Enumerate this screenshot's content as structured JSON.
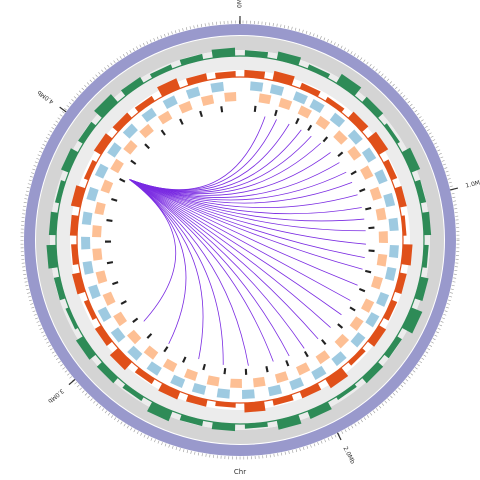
{
  "chart_data": {
    "type": "circos",
    "title": "Chr",
    "xlim": [
      0,
      4.7
    ],
    "xticks": [
      {
        "value": 0,
        "label": "0Mb"
      },
      {
        "value": 1,
        "label": "1.0Mb"
      },
      {
        "value": 2,
        "label": "2.0Mb"
      },
      {
        "value": 3,
        "label": "3.0Mb"
      },
      {
        "value": 4,
        "label": "4.0Mb"
      }
    ],
    "ring_color": "#9999cc",
    "tracks": [
      {
        "name_hidden": false,
        "kind": "histogram",
        "color": "#2e8b57",
        "ylim": [
          0,
          1
        ],
        "values": [
          0.5,
          0.7,
          0.4,
          0.9,
          0.6,
          0.3,
          0.8,
          0.5,
          0.6,
          0.4,
          0.7,
          1.0,
          0.5,
          0.6,
          0.3,
          0.7,
          0.8,
          0.4,
          0.6,
          0.5,
          0.9,
          0.4,
          0.6,
          0.7,
          0.3,
          0.5,
          0.8,
          0.6,
          0.4,
          0.7,
          0.5,
          0.9,
          0.6,
          0.4,
          0.5,
          0.7
        ]
      },
      {
        "name_hidden": false,
        "kind": "histogram",
        "color": "#e0501a",
        "ylim": [
          0,
          1
        ],
        "values": [
          0.6,
          0.8,
          0.5,
          0.4,
          0.7,
          0.9,
          0.5,
          0.6,
          0.3,
          0.8,
          0.6,
          0.5,
          0.7,
          0.4,
          0.9,
          0.6,
          0.5,
          0.8,
          0.4,
          0.6,
          0.7,
          0.5,
          0.9,
          0.6,
          0.4,
          0.7,
          0.5,
          0.6,
          0.8,
          0.4,
          0.7,
          0.6,
          0.5,
          0.9,
          0.6,
          0.5
        ]
      }
    ],
    "forward_genes": {
      "color": "#9ecae1",
      "starts": [
        0.05,
        0.15,
        0.27,
        0.36,
        0.48,
        0.6,
        0.71,
        0.83,
        0.95,
        1.07,
        1.2,
        1.31,
        1.44,
        1.55,
        1.67,
        1.8,
        1.92,
        2.04,
        2.15,
        2.28,
        2.4,
        2.52,
        2.63,
        2.76,
        2.88,
        3.0,
        3.12,
        3.24,
        3.36,
        3.48,
        3.6,
        3.72,
        3.84,
        3.96,
        4.08,
        4.2,
        4.32,
        4.44,
        4.56
      ]
    },
    "reverse_genes": {
      "color": "#fdbf94",
      "starts": [
        0.1,
        0.21,
        0.32,
        0.43,
        0.55,
        0.66,
        0.78,
        0.9,
        1.01,
        1.13,
        1.25,
        1.37,
        1.5,
        1.61,
        1.73,
        1.86,
        1.98,
        2.1,
        2.22,
        2.34,
        2.46,
        2.58,
        2.7,
        2.82,
        2.94,
        3.06,
        3.18,
        3.3,
        3.42,
        3.54,
        3.66,
        3.78,
        3.9,
        4.02,
        4.14,
        4.26,
        4.38,
        4.5,
        4.62
      ]
    },
    "features": {
      "color": "#222222",
      "positions": [
        0.08,
        0.2,
        0.33,
        0.41,
        0.52,
        0.64,
        0.77,
        0.88,
        0.99,
        1.1,
        1.23,
        1.35,
        1.46,
        1.58,
        1.7,
        1.83,
        1.95,
        2.07,
        2.19,
        2.31,
        2.43,
        2.55,
        2.67,
        2.79,
        2.91,
        3.03,
        3.15,
        3.27,
        3.39,
        3.51,
        3.63,
        3.75,
        3.87,
        3.99,
        4.11,
        4.23,
        4.35,
        4.47,
        4.59
      ]
    },
    "links": {
      "color": "#7a2be2",
      "source": [
        3.9,
        3.9,
        3.9,
        3.9,
        3.9,
        3.9,
        3.9,
        3.9,
        3.9,
        3.9,
        3.9,
        3.9,
        3.9,
        3.9,
        3.9,
        3.9,
        3.9,
        3.9,
        3.9,
        3.9,
        3.9,
        3.9,
        3.9,
        3.9,
        3.9,
        3.9,
        3.9,
        3.9,
        3.9,
        3.9
      ],
      "target": [
        0.15,
        0.22,
        0.3,
        0.38,
        0.45,
        0.52,
        0.6,
        0.68,
        0.75,
        0.82,
        0.9,
        0.98,
        1.05,
        1.12,
        1.2,
        1.28,
        1.35,
        1.45,
        1.55,
        1.65,
        1.75,
        1.85,
        1.95,
        2.05,
        2.15,
        2.3,
        2.45,
        2.6,
        2.8,
        3.0
      ]
    }
  }
}
